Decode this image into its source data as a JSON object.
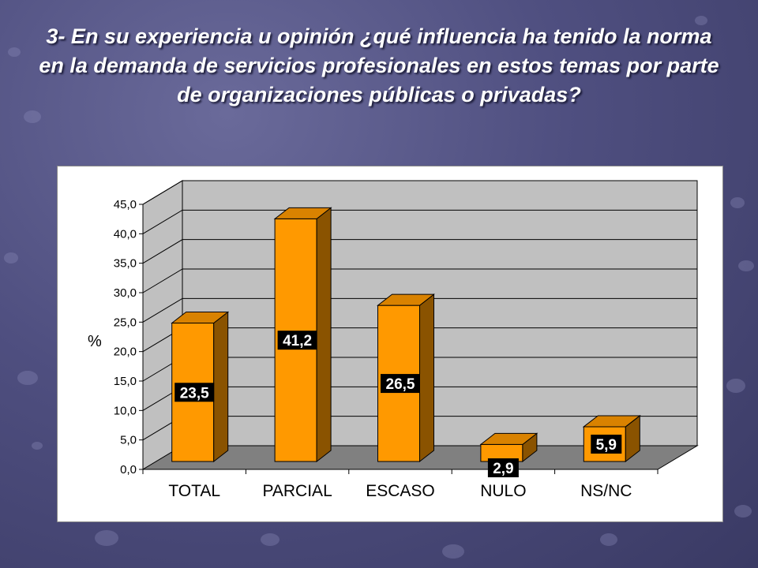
{
  "slide": {
    "title": "3- En su experiencia u opinión ¿qué influencia ha tenido la norma en la demanda de servicios profesionales en estos temas por parte de organizaciones públicas o privadas?"
  },
  "chart_data": {
    "type": "bar",
    "title": "",
    "xlabel": "",
    "ylabel": "%",
    "categories": [
      "TOTAL",
      "PARCIAL",
      "ESCASO",
      "NULO",
      "NS/NC"
    ],
    "values": [
      23.5,
      41.2,
      26.5,
      2.9,
      5.9
    ],
    "value_labels": [
      "23,5",
      "41,2",
      "26,5",
      "2,9",
      "5,9"
    ],
    "ylim": [
      0,
      45
    ],
    "y_ticks": [
      "0,0",
      "5,0",
      "10,0",
      "15,0",
      "20,0",
      "25,0",
      "30,0",
      "35,0",
      "40,0",
      "45,0"
    ],
    "grid": true,
    "three_d": true,
    "bar_color": "#FF9900",
    "back_wall_color": "#C0C0C0",
    "floor_color": "#808080",
    "label_box_color": "#000000"
  }
}
